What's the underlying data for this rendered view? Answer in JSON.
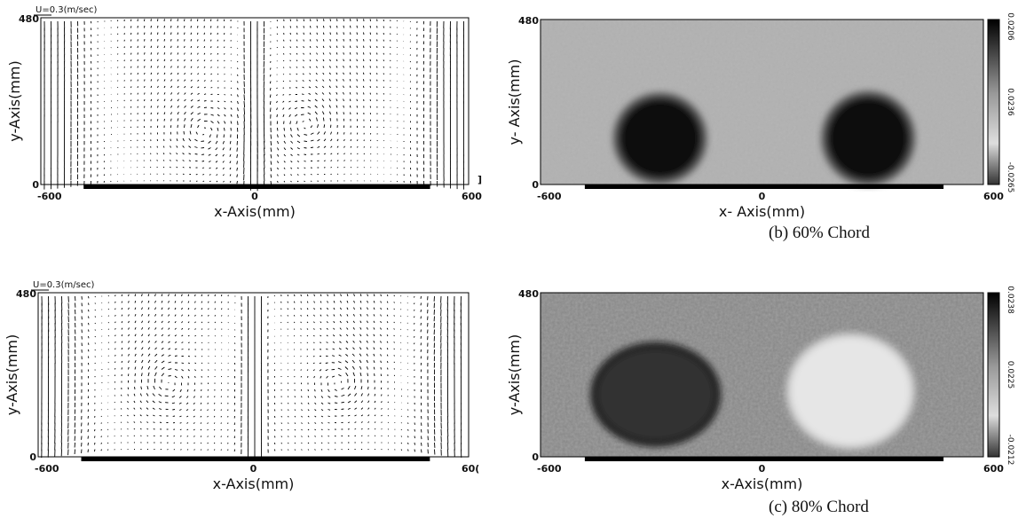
{
  "panels": [
    {
      "scale_label": "U=0.3(m/sec)",
      "y_label": "y-Axis(mm)",
      "x_label": "x-Axis(mm)",
      "y_ticks": [
        "480",
        "0"
      ],
      "x_ticks": [
        "-600",
        "0",
        "600"
      ],
      "edge_mark": "]"
    },
    {
      "y_label": "y- Axis(mm)",
      "x_label": "x- Axis(mm)",
      "y_ticks": [
        "480",
        "0"
      ],
      "x_ticks": [
        "-600",
        "0",
        "600"
      ],
      "colorbar_ticks": [
        "0.0206",
        "0.0236",
        "-0.0265"
      ],
      "caption": "(b) 60% Chord"
    },
    {
      "scale_label": "U=0.3(m/sec)",
      "y_label": "y-Axis(mm)",
      "x_label": "x-Axis(mm)",
      "y_ticks": [
        "480",
        "0"
      ],
      "x_ticks": [
        "-600",
        "0",
        "60("
      ]
    },
    {
      "y_label": "y-Axis(mm)",
      "x_label": "x-Axis(mm)",
      "y_ticks": [
        "480",
        "0"
      ],
      "x_ticks": [
        "-600",
        "0",
        "600"
      ],
      "colorbar_ticks": [
        "0.0238",
        "0.0225",
        "-0.0212"
      ],
      "caption": "(c) 80% Chord"
    }
  ]
}
